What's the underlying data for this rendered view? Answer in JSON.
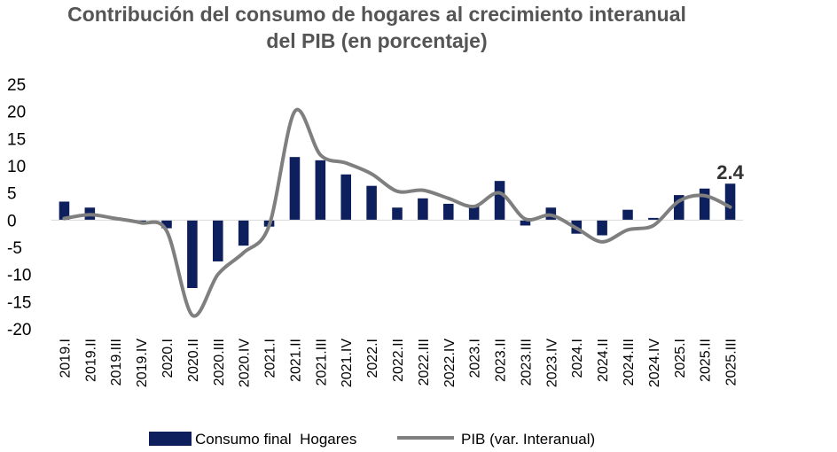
{
  "chart_data": {
    "type": "bar+line",
    "title_lines": [
      "Contribución del consumo de hogares al crecimiento interanual",
      "del PIB (en porcentaje)"
    ],
    "categories": [
      "2019.I",
      "2019.II",
      "2019.III",
      "2019.IV",
      "2020.I",
      "2020.II",
      "2020.III",
      "2020.IV",
      "2021.I",
      "2021.II",
      "2021.III",
      "2021.IV",
      "2022.I",
      "2022.II",
      "2022.III",
      "2022.IV",
      "2023.I",
      "2023.II",
      "2023.III",
      "2023.IV",
      "2024.I",
      "2024.II",
      "2024.III",
      "2024.IV",
      "2025.I",
      "2025.II",
      "2025.III"
    ],
    "series": [
      {
        "name": "Consumo final  Hogares",
        "type": "bar",
        "color": "#0d1f5c",
        "values": [
          3.4,
          2.3,
          0.0,
          -0.3,
          -1.5,
          -12.5,
          -7.6,
          -4.7,
          -1.2,
          11.6,
          11.0,
          8.4,
          6.3,
          2.3,
          4.0,
          3.0,
          2.5,
          7.2,
          -1.0,
          2.3,
          -2.5,
          -2.8,
          1.9,
          0.4,
          4.6,
          5.8,
          6.7
        ]
      },
      {
        "name": "PIB (var. Interanual)",
        "type": "line",
        "color": "#7f7f7f",
        "values": [
          0.3,
          1.0,
          0.3,
          -0.5,
          -2.0,
          -17.5,
          -10.0,
          -6.0,
          -1.0,
          20.0,
          12.0,
          10.5,
          8.5,
          5.3,
          5.5,
          4.0,
          2.5,
          5.0,
          0.2,
          0.9,
          -1.5,
          -4.0,
          -1.8,
          -1.0,
          3.5,
          4.5,
          2.4
        ]
      }
    ],
    "annotation": {
      "category": "2025.III",
      "text": "2.4"
    },
    "ylim": [
      -20,
      25
    ],
    "yticks": [
      25,
      20,
      15,
      10,
      5,
      0,
      -5,
      -10,
      -15,
      -20
    ],
    "legend_position": "bottom"
  }
}
